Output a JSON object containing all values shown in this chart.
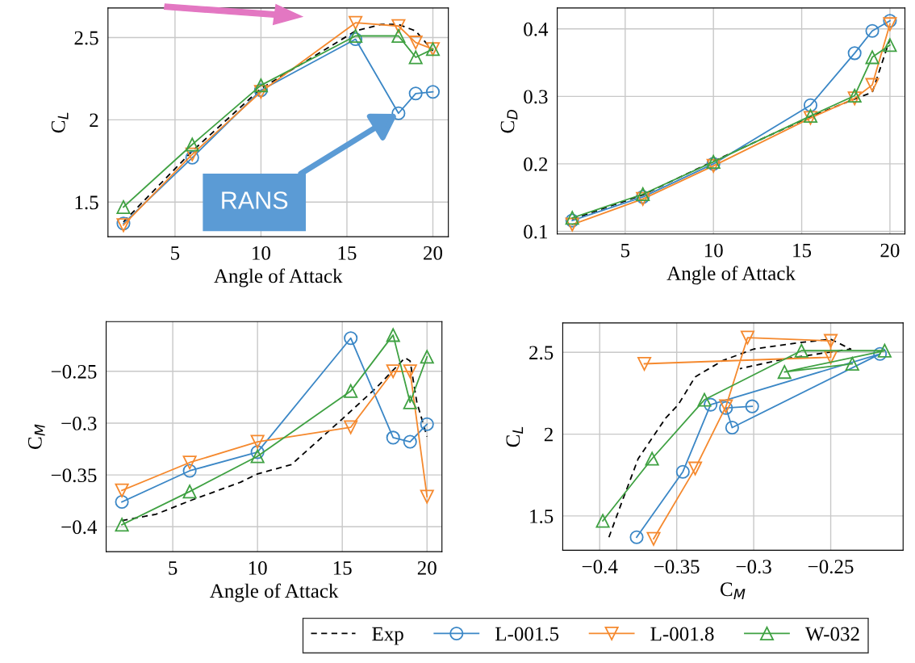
{
  "chart_data": [
    {
      "type": "line",
      "xlabel": "Angle of Attack",
      "ylabel": "C$_{L}$",
      "xlim": [
        1.1,
        20.9
      ],
      "ylim": [
        1.29,
        2.68
      ],
      "xticks": [
        5,
        10,
        15,
        20
      ],
      "yticks": [
        1.5,
        2,
        2.5
      ],
      "grid": true,
      "legend": "bottom",
      "x": [
        2,
        6,
        10,
        15.5,
        18,
        19,
        20
      ],
      "annotations": [
        {
          "text": "RANS",
          "x": 18,
          "y": 2.04
        }
      ],
      "series": [
        {
          "name": "Exp",
          "color": "#000000",
          "marker": "none",
          "line_style": "dashed",
          "x": [
            2,
            6,
            10,
            15.5,
            17,
            18,
            19,
            20
          ],
          "values": [
            1.38,
            1.81,
            2.19,
            2.54,
            2.58,
            2.58,
            2.54,
            2.42
          ]
        },
        {
          "name": "L-001.5",
          "color": "#3b87c6",
          "marker": "circle",
          "line_style": "solid",
          "values": [
            1.37,
            1.77,
            2.18,
            2.49,
            2.04,
            2.16,
            2.17
          ]
        },
        {
          "name": "L-001.8",
          "color": "#f5892e",
          "marker": "triangle_down",
          "line_style": "solid",
          "values": [
            1.36,
            1.79,
            2.17,
            2.59,
            2.57,
            2.47,
            2.43
          ]
        },
        {
          "name": "W-032",
          "color": "#3fa142",
          "marker": "triangle",
          "line_style": "solid",
          "values": [
            1.47,
            1.85,
            2.21,
            2.51,
            2.51,
            2.38,
            2.43
          ]
        }
      ]
    },
    {
      "type": "line",
      "xlabel": "Angle of Attack",
      "ylabel": "C$_{D}$",
      "xlim": [
        1.15,
        20.85
      ],
      "ylim": [
        0.096,
        0.431
      ],
      "xticks": [
        5,
        10,
        15,
        20
      ],
      "yticks": [
        0.1,
        0.2,
        0.3,
        0.4
      ],
      "grid": true,
      "x": [
        2,
        6,
        10,
        15.5,
        18,
        19,
        20
      ],
      "series": [
        {
          "color": "#000000",
          "marker": "none",
          "line_style": "dashed",
          "values": [
            0.118,
            0.154,
            0.204,
            0.27,
            0.296,
            0.306,
            0.385
          ]
        },
        {
          "color": "#3b87c6",
          "marker": "circle",
          "line_style": "solid",
          "values": [
            0.116,
            0.151,
            0.2,
            0.287,
            0.364,
            0.397,
            0.412
          ]
        },
        {
          "color": "#f5892e",
          "marker": "triangle_down",
          "line_style": "solid",
          "values": [
            0.11,
            0.148,
            0.197,
            0.268,
            0.297,
            0.317,
            0.407
          ]
        },
        {
          "color": "#3fa142",
          "marker": "triangle",
          "line_style": "solid",
          "values": [
            0.12,
            0.155,
            0.203,
            0.271,
            0.301,
            0.358,
            0.376
          ]
        }
      ]
    },
    {
      "type": "line",
      "xlabel": "Angle of Attack",
      "ylabel": "C$_{M}$",
      "xlim": [
        1.07,
        20.88
      ],
      "ylim": [
        -0.424,
        -0.202
      ],
      "xticks": [
        5,
        10,
        15,
        20
      ],
      "yticks": [
        {
          "value": -0.4,
          "label": "−0.4"
        },
        {
          "value": -0.35,
          "label": "−0.35"
        },
        {
          "value": -0.3,
          "label": "−0.3"
        },
        {
          "value": -0.25,
          "label": "−0.25"
        }
      ],
      "grid": true,
      "x": [
        2,
        6,
        10,
        15.5,
        18,
        19,
        20
      ],
      "series": [
        {
          "color": "#000000",
          "marker": "none",
          "line_style": "dashed",
          "x": [
            2,
            4,
            6,
            9,
            10,
            12,
            15,
            17,
            18.7,
            19,
            19.4,
            20
          ],
          "values": [
            -0.394,
            -0.388,
            -0.375,
            -0.357,
            -0.349,
            -0.34,
            -0.296,
            -0.266,
            -0.237,
            -0.24,
            -0.28,
            -0.313
          ]
        },
        {
          "color": "#3b87c6",
          "marker": "circle",
          "line_style": "solid",
          "values": [
            -0.376,
            -0.346,
            -0.328,
            -0.218,
            -0.314,
            -0.318,
            -0.301
          ]
        },
        {
          "color": "#f5892e",
          "marker": "triangle_down",
          "line_style": "solid",
          "values": [
            -0.365,
            -0.338,
            -0.318,
            -0.304,
            -0.25,
            -0.25,
            -0.371
          ]
        },
        {
          "color": "#3fa142",
          "marker": "triangle",
          "line_style": "solid",
          "values": [
            -0.398,
            -0.366,
            -0.332,
            -0.269,
            -0.215,
            -0.28,
            -0.236
          ]
        }
      ]
    },
    {
      "type": "line",
      "xlabel": "C$_{M}$",
      "ylabel": "C$_{L}$",
      "xlim": [
        -0.424,
        -0.203
      ],
      "ylim": [
        1.29,
        2.68
      ],
      "xticks": [
        {
          "value": -0.4,
          "label": "−0.4"
        },
        {
          "value": -0.35,
          "label": "−0.35"
        },
        {
          "value": -0.3,
          "label": "−0.3"
        },
        {
          "value": -0.25,
          "label": "−0.25"
        }
      ],
      "yticks": [
        1.5,
        2,
        2.5
      ],
      "grid": true,
      "series": [
        {
          "color": "#000000",
          "marker": "none",
          "line_style": "dashed",
          "x": [
            -0.394,
            -0.385,
            -0.375,
            -0.357,
            -0.349,
            -0.338,
            -0.32,
            -0.3,
            -0.27,
            -0.25,
            -0.237,
            -0.28,
            -0.309
          ],
          "values": [
            1.37,
            1.6,
            1.85,
            2.1,
            2.18,
            2.35,
            2.45,
            2.52,
            2.56,
            2.58,
            2.52,
            2.46,
            2.4
          ]
        },
        {
          "color": "#3b87c6",
          "marker": "circle",
          "line_style": "solid",
          "x": [
            -0.376,
            -0.346,
            -0.328,
            -0.218,
            -0.314,
            -0.318,
            -0.301
          ],
          "values": [
            1.37,
            1.77,
            2.18,
            2.49,
            2.04,
            2.16,
            2.17
          ]
        },
        {
          "color": "#f5892e",
          "marker": "triangle_down",
          "line_style": "solid",
          "x": [
            -0.365,
            -0.338,
            -0.318,
            -0.304,
            -0.25,
            -0.25,
            -0.371
          ],
          "values": [
            1.36,
            1.79,
            2.17,
            2.59,
            2.57,
            2.47,
            2.43
          ]
        },
        {
          "color": "#3fa142",
          "marker": "triangle",
          "line_style": "solid",
          "x": [
            -0.398,
            -0.366,
            -0.332,
            -0.269,
            -0.215,
            -0.28,
            -0.236
          ],
          "values": [
            1.47,
            1.85,
            2.21,
            2.51,
            2.51,
            2.38,
            2.43
          ]
        }
      ]
    }
  ]
}
